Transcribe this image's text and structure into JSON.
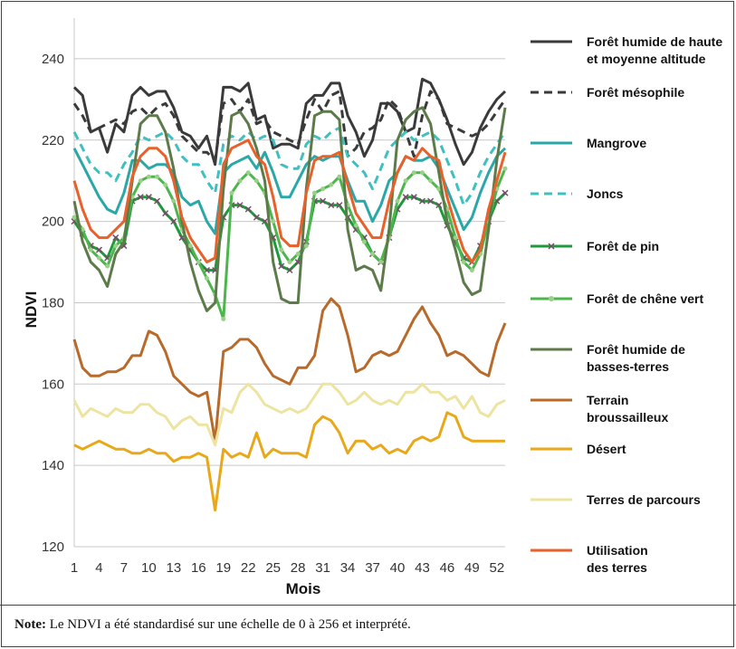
{
  "chart_data": {
    "type": "line",
    "xlabel": "Mois",
    "ylabel": "NDVI",
    "ylim": [
      120,
      250
    ],
    "yticks": [
      120,
      140,
      160,
      180,
      200,
      220,
      240
    ],
    "xticks": [
      1,
      4,
      7,
      10,
      13,
      16,
      19,
      22,
      25,
      28,
      31,
      34,
      37,
      40,
      43,
      46,
      49,
      52
    ],
    "xlim": [
      1,
      53
    ],
    "grid": "horizontal",
    "legend_position": "right",
    "series": [
      {
        "name": "Forêt humide de haute et moyenne altitude",
        "color": "#3a3a3a",
        "dash": "solid",
        "marker": "none",
        "values": [
          233,
          231,
          222,
          223,
          217,
          224,
          222,
          231,
          233,
          231,
          232,
          232,
          228,
          222,
          221,
          218,
          221,
          214,
          233,
          233,
          232,
          234,
          225,
          226,
          218,
          219,
          219,
          218,
          229,
          231,
          231,
          234,
          234,
          226,
          222,
          216,
          220,
          229,
          229,
          227,
          222,
          223,
          235,
          234,
          230,
          225,
          219,
          214,
          217,
          223,
          227,
          230,
          232
        ]
      },
      {
        "name": "Forêt mésophile",
        "color": "#3a3a3a",
        "dash": "dash",
        "marker": "none",
        "values": [
          229,
          226,
          222,
          223,
          224,
          225,
          224,
          227,
          228,
          226,
          228,
          229,
          226,
          221,
          219,
          217,
          217,
          215,
          229,
          230,
          227,
          230,
          224,
          225,
          222,
          221,
          220,
          219,
          225,
          230,
          227,
          231,
          232,
          216,
          218,
          222,
          223,
          225,
          230,
          228,
          222,
          216,
          226,
          232,
          230,
          224,
          223,
          222,
          221,
          222,
          224,
          227,
          230
        ]
      },
      {
        "name": "Mangrove",
        "color": "#2aa7a7",
        "dash": "solid",
        "marker": "none",
        "values": [
          218,
          214,
          210,
          206,
          203,
          202,
          207,
          215,
          215,
          213,
          214,
          214,
          212,
          206,
          204,
          205,
          200,
          197,
          212,
          214,
          215,
          216,
          213,
          217,
          212,
          206,
          206,
          210,
          214,
          216,
          215,
          216,
          216,
          210,
          205,
          205,
          200,
          204,
          210,
          212,
          216,
          215,
          215,
          216,
          213,
          208,
          203,
          198,
          201,
          207,
          212,
          216,
          218
        ]
      },
      {
        "name": "Joncs",
        "color": "#3fc0c0",
        "dash": "dash",
        "marker": "none",
        "values": [
          222,
          218,
          214,
          212,
          212,
          210,
          214,
          217,
          221,
          220,
          221,
          222,
          220,
          216,
          214,
          214,
          210,
          207,
          219,
          221,
          220,
          222,
          220,
          221,
          220,
          214,
          213,
          213,
          219,
          221,
          220,
          222,
          223,
          216,
          214,
          212,
          208,
          213,
          218,
          220,
          222,
          220,
          221,
          222,
          220,
          215,
          210,
          204,
          207,
          212,
          216,
          219,
          222
        ]
      },
      {
        "name": "Forêt de pin",
        "color": "#1f9a3a",
        "dash": "solid",
        "marker": "x",
        "marker_color": "#7a4a6a",
        "values": [
          200,
          197,
          194,
          193,
          191,
          196,
          194,
          205,
          206,
          206,
          205,
          202,
          200,
          196,
          193,
          190,
          188,
          188,
          201,
          204,
          204,
          203,
          201,
          200,
          196,
          189,
          188,
          190,
          195,
          205,
          205,
          204,
          204,
          201,
          198,
          196,
          192,
          190,
          196,
          203,
          206,
          206,
          205,
          205,
          204,
          199,
          195,
          191,
          190,
          194,
          200,
          205,
          207
        ]
      },
      {
        "name": "Forêt de chêne vert",
        "color": "#4cb64c",
        "dash": "solid",
        "marker": "o",
        "marker_color": "#9ad08a",
        "values": [
          201,
          198,
          193,
          191,
          189,
          194,
          196,
          206,
          210,
          211,
          211,
          209,
          205,
          198,
          194,
          190,
          186,
          182,
          176,
          207,
          210,
          212,
          210,
          207,
          200,
          193,
          190,
          192,
          194,
          207,
          208,
          209,
          211,
          204,
          199,
          195,
          192,
          190,
          196,
          205,
          210,
          212,
          212,
          210,
          208,
          203,
          196,
          190,
          188,
          192,
          200,
          208,
          213
        ]
      },
      {
        "name": "Forêt humide de basses-terres",
        "color": "#5d7a4a",
        "dash": "solid",
        "marker": "none",
        "values": [
          205,
          195,
          190,
          188,
          184,
          192,
          195,
          210,
          224,
          226,
          226,
          222,
          213,
          200,
          190,
          183,
          178,
          180,
          208,
          226,
          227,
          224,
          218,
          210,
          190,
          181,
          180,
          180,
          208,
          226,
          227,
          227,
          225,
          198,
          188,
          189,
          188,
          183,
          198,
          220,
          225,
          227,
          228,
          224,
          212,
          200,
          193,
          185,
          182,
          183,
          198,
          215,
          228
        ]
      },
      {
        "name": "Terrain broussailleux",
        "color": "#b86a2a",
        "dash": "solid",
        "marker": "none",
        "values": [
          171,
          164,
          162,
          162,
          163,
          163,
          164,
          167,
          167,
          173,
          172,
          168,
          162,
          160,
          158,
          157,
          158,
          146,
          168,
          169,
          171,
          171,
          169,
          165,
          162,
          161,
          160,
          164,
          164,
          167,
          178,
          181,
          179,
          172,
          163,
          164,
          167,
          168,
          167,
          168,
          172,
          176,
          179,
          175,
          172,
          167,
          168,
          167,
          165,
          163,
          162,
          170,
          175
        ]
      },
      {
        "name": "Désert",
        "color": "#e8a81a",
        "dash": "solid",
        "marker": "none",
        "values": [
          145,
          144,
          145,
          146,
          145,
          144,
          144,
          143,
          143,
          144,
          143,
          143,
          141,
          142,
          142,
          143,
          142,
          129,
          144,
          142,
          143,
          142,
          148,
          142,
          144,
          143,
          143,
          143,
          142,
          150,
          152,
          151,
          148,
          143,
          146,
          146,
          144,
          145,
          143,
          144,
          143,
          146,
          147,
          146,
          147,
          153,
          152,
          147,
          146,
          146,
          146,
          146,
          146
        ]
      },
      {
        "name": "Terres de parcours",
        "color": "#ece4a0",
        "dash": "solid",
        "marker": "none",
        "values": [
          156,
          152,
          154,
          153,
          152,
          154,
          153,
          153,
          155,
          155,
          153,
          152,
          149,
          151,
          152,
          150,
          150,
          145,
          154,
          153,
          158,
          160,
          158,
          155,
          154,
          153,
          154,
          153,
          154,
          157,
          160,
          160,
          158,
          155,
          156,
          158,
          156,
          155,
          156,
          155,
          158,
          158,
          160,
          158,
          158,
          156,
          157,
          154,
          157,
          153,
          152,
          155,
          156
        ]
      },
      {
        "name": "Utilisation des terres",
        "color": "#e8602a",
        "dash": "solid",
        "marker": "none",
        "values": [
          210,
          203,
          198,
          196,
          196,
          198,
          200,
          211,
          216,
          218,
          218,
          216,
          210,
          201,
          196,
          193,
          190,
          191,
          214,
          218,
          219,
          220,
          216,
          214,
          206,
          196,
          194,
          194,
          207,
          215,
          216,
          216,
          217,
          209,
          202,
          199,
          196,
          196,
          205,
          212,
          216,
          215,
          218,
          216,
          215,
          206,
          199,
          193,
          190,
          193,
          203,
          210,
          217
        ]
      }
    ],
    "legend": [
      {
        "label": "Forêt humide de haute",
        "label2": "et moyenne altitude"
      },
      {
        "label": "Forêt mésophile",
        "label2": ""
      },
      {
        "label": "Mangrove",
        "label2": ""
      },
      {
        "label": "Joncs",
        "label2": ""
      },
      {
        "label": "Forêt de pin",
        "label2": ""
      },
      {
        "label": "Forêt de chêne vert",
        "label2": ""
      },
      {
        "label": "Forêt humide de",
        "label2": "basses-terres"
      },
      {
        "label": "Terrain",
        "label2": "broussailleux"
      },
      {
        "label": "Désert",
        "label2": ""
      },
      {
        "label": "Terres de parcours",
        "label2": ""
      },
      {
        "label": "Utilisation",
        "label2": "des terres"
      }
    ]
  },
  "note": {
    "prefix": "Note:",
    "text": " Le NDVI a été standardisé sur une échelle de 0 à 256 et interprété."
  }
}
